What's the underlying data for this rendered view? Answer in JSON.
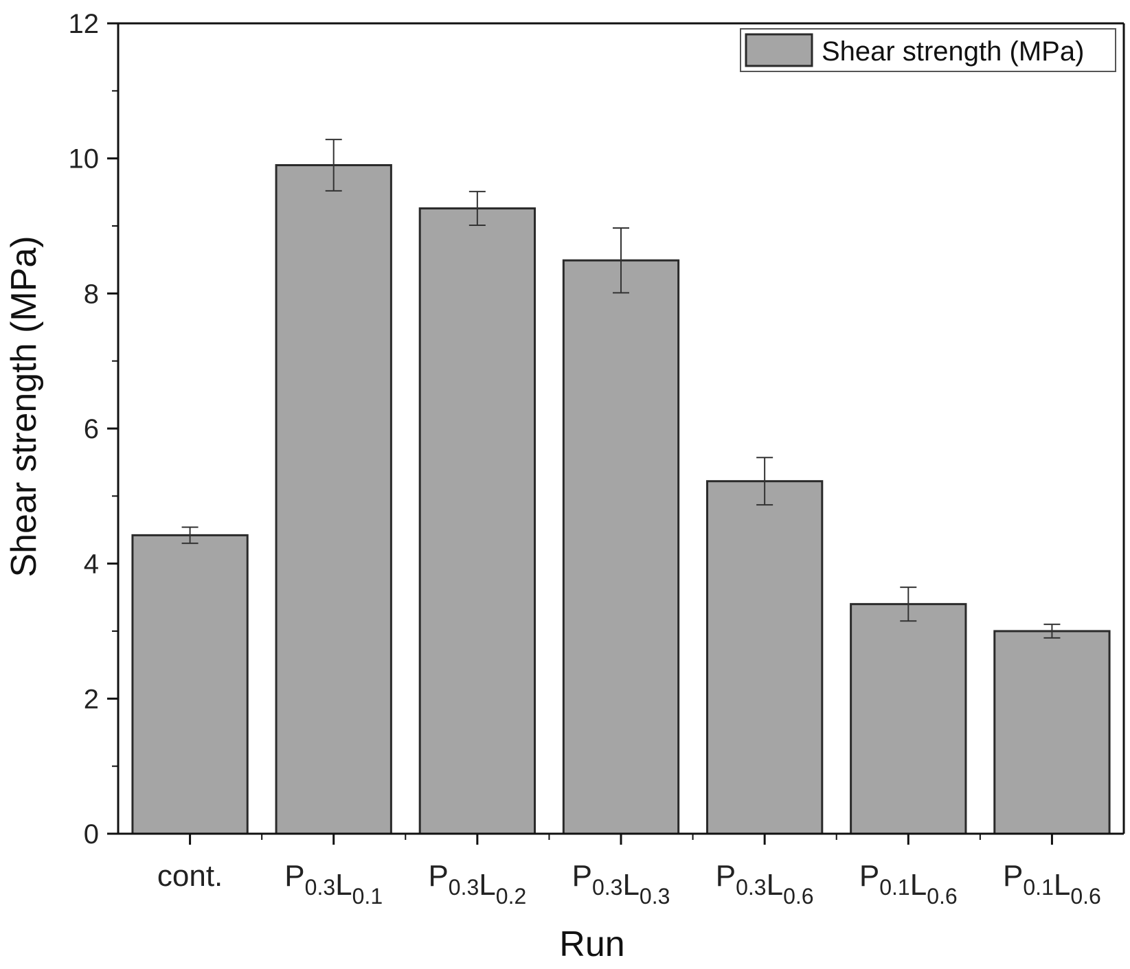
{
  "chart_data": {
    "type": "bar",
    "xlabel": "Run",
    "ylabel": "Shear strength (MPa)",
    "ylim": [
      0,
      12
    ],
    "yticks": [
      "0",
      "2",
      "4",
      "6",
      "8",
      "10",
      "12"
    ],
    "grid": false,
    "legend": {
      "placement": "top-right",
      "label": "Shear strength (MPa)"
    },
    "categories": [
      {
        "main": "cont.",
        "parts": []
      },
      {
        "main": "P0.3L0.1",
        "parts": [
          [
            "P",
            "0.3"
          ],
          [
            "L",
            "0.1"
          ]
        ]
      },
      {
        "main": "P0.3L0.2",
        "parts": [
          [
            "P",
            "0.3"
          ],
          [
            "L",
            "0.2"
          ]
        ]
      },
      {
        "main": "P0.3L0.3",
        "parts": [
          [
            "P",
            "0.3"
          ],
          [
            "L",
            "0.3"
          ]
        ]
      },
      {
        "main": "P0.3L0.6",
        "parts": [
          [
            "P",
            "0.3"
          ],
          [
            "L",
            "0.6"
          ]
        ]
      },
      {
        "main": "P0.1L0.6",
        "parts": [
          [
            "P",
            "0.1"
          ],
          [
            "L",
            "0.6"
          ]
        ]
      },
      {
        "main": "P0.1L0.6",
        "parts": [
          [
            "P",
            "0.1"
          ],
          [
            "L",
            "0.6"
          ]
        ]
      }
    ],
    "series": [
      {
        "name": "Shear strength (MPa)",
        "values": [
          4.42,
          9.9,
          9.26,
          8.49,
          5.22,
          3.4,
          3.0
        ],
        "errors": [
          0.12,
          0.38,
          0.25,
          0.48,
          0.35,
          0.25,
          0.1
        ]
      }
    ],
    "colors": {
      "bar": "#a5a5a5",
      "bar_edge": "#2a2a2a",
      "axis": "#111111",
      "error": "#333333"
    }
  }
}
